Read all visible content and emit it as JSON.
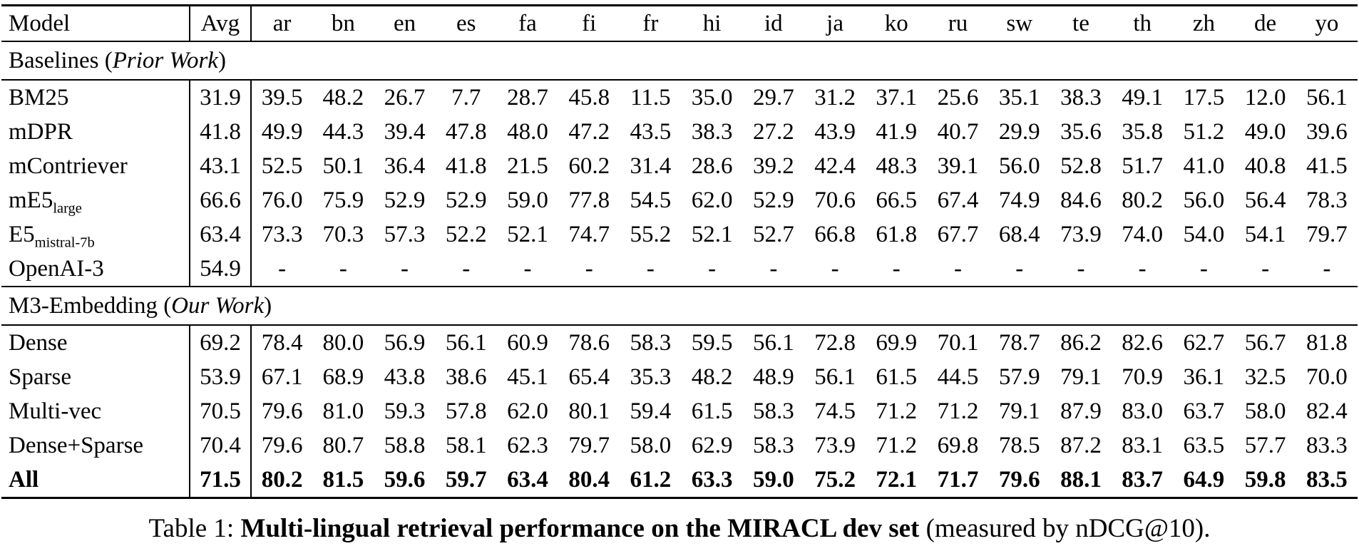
{
  "table": {
    "header": {
      "model_label": "Model",
      "avg_label": "Avg",
      "languages": [
        "ar",
        "bn",
        "en",
        "es",
        "fa",
        "fi",
        "fr",
        "hi",
        "id",
        "ja",
        "ko",
        "ru",
        "sw",
        "te",
        "th",
        "zh",
        "de",
        "yo"
      ]
    },
    "sections": [
      {
        "title": "Baselines (",
        "title_italic": "Prior Work",
        "title_close": ")",
        "rows": [
          {
            "model": "BM25",
            "model_sub": "",
            "avg": "31.9",
            "bold": false,
            "values": [
              "39.5",
              "48.2",
              "26.7",
              "7.7",
              "28.7",
              "45.8",
              "11.5",
              "35.0",
              "29.7",
              "31.2",
              "37.1",
              "25.6",
              "35.1",
              "38.3",
              "49.1",
              "17.5",
              "12.0",
              "56.1"
            ]
          },
          {
            "model": "mDPR",
            "model_sub": "",
            "avg": "41.8",
            "bold": false,
            "values": [
              "49.9",
              "44.3",
              "39.4",
              "47.8",
              "48.0",
              "47.2",
              "43.5",
              "38.3",
              "27.2",
              "43.9",
              "41.9",
              "40.7",
              "29.9",
              "35.6",
              "35.8",
              "51.2",
              "49.0",
              "39.6"
            ]
          },
          {
            "model": "mContriever",
            "model_sub": "",
            "avg": "43.1",
            "bold": false,
            "values": [
              "52.5",
              "50.1",
              "36.4",
              "41.8",
              "21.5",
              "60.2",
              "31.4",
              "28.6",
              "39.2",
              "42.4",
              "48.3",
              "39.1",
              "56.0",
              "52.8",
              "51.7",
              "41.0",
              "40.8",
              "41.5"
            ]
          },
          {
            "model": "mE5",
            "model_sub": "large",
            "avg": "66.6",
            "bold": false,
            "values": [
              "76.0",
              "75.9",
              "52.9",
              "52.9",
              "59.0",
              "77.8",
              "54.5",
              "62.0",
              "52.9",
              "70.6",
              "66.5",
              "67.4",
              "74.9",
              "84.6",
              "80.2",
              "56.0",
              "56.4",
              "78.3"
            ]
          },
          {
            "model": "E5",
            "model_sub": "mistral-7b",
            "avg": "63.4",
            "bold": false,
            "values": [
              "73.3",
              "70.3",
              "57.3",
              "52.2",
              "52.1",
              "74.7",
              "55.2",
              "52.1",
              "52.7",
              "66.8",
              "61.8",
              "67.7",
              "68.4",
              "73.9",
              "74.0",
              "54.0",
              "54.1",
              "79.7"
            ]
          },
          {
            "model": "OpenAI-3",
            "model_sub": "",
            "avg": "54.9",
            "bold": false,
            "values": [
              "-",
              "-",
              "-",
              "-",
              "-",
              "-",
              "-",
              "-",
              "-",
              "-",
              "-",
              "-",
              "-",
              "-",
              "-",
              "-",
              "-",
              "-"
            ]
          }
        ]
      },
      {
        "title": "M3-Embedding (",
        "title_italic": "Our Work",
        "title_close": ")",
        "rows": [
          {
            "model": "Dense",
            "model_sub": "",
            "avg": "69.2",
            "bold": false,
            "values": [
              "78.4",
              "80.0",
              "56.9",
              "56.1",
              "60.9",
              "78.6",
              "58.3",
              "59.5",
              "56.1",
              "72.8",
              "69.9",
              "70.1",
              "78.7",
              "86.2",
              "82.6",
              "62.7",
              "56.7",
              "81.8"
            ]
          },
          {
            "model": "Sparse",
            "model_sub": "",
            "avg": "53.9",
            "bold": false,
            "values": [
              "67.1",
              "68.9",
              "43.8",
              "38.6",
              "45.1",
              "65.4",
              "35.3",
              "48.2",
              "48.9",
              "56.1",
              "61.5",
              "44.5",
              "57.9",
              "79.1",
              "70.9",
              "36.1",
              "32.5",
              "70.0"
            ]
          },
          {
            "model": "Multi-vec",
            "model_sub": "",
            "avg": "70.5",
            "bold": false,
            "values": [
              "79.6",
              "81.0",
              "59.3",
              "57.8",
              "62.0",
              "80.1",
              "59.4",
              "61.5",
              "58.3",
              "74.5",
              "71.2",
              "71.2",
              "79.1",
              "87.9",
              "83.0",
              "63.7",
              "58.0",
              "82.4"
            ]
          },
          {
            "model": "Dense+Sparse",
            "model_sub": "",
            "avg": "70.4",
            "bold": false,
            "values": [
              "79.6",
              "80.7",
              "58.8",
              "58.1",
              "62.3",
              "79.7",
              "58.0",
              "62.9",
              "58.3",
              "73.9",
              "71.2",
              "69.8",
              "78.5",
              "87.2",
              "83.1",
              "63.5",
              "57.7",
              "83.3"
            ]
          },
          {
            "model": "All",
            "model_sub": "",
            "avg": "71.5",
            "bold": true,
            "values": [
              "80.2",
              "81.5",
              "59.6",
              "59.7",
              "63.4",
              "80.4",
              "61.2",
              "63.3",
              "59.0",
              "75.2",
              "72.1",
              "71.7",
              "79.6",
              "88.1",
              "83.7",
              "64.9",
              "59.8",
              "83.5"
            ]
          }
        ]
      }
    ]
  },
  "caption": {
    "prefix": "Table 1: ",
    "bold": "Multi-lingual retrieval performance on the MIRACL dev set",
    "suffix": " (measured by nDCG@10)."
  }
}
